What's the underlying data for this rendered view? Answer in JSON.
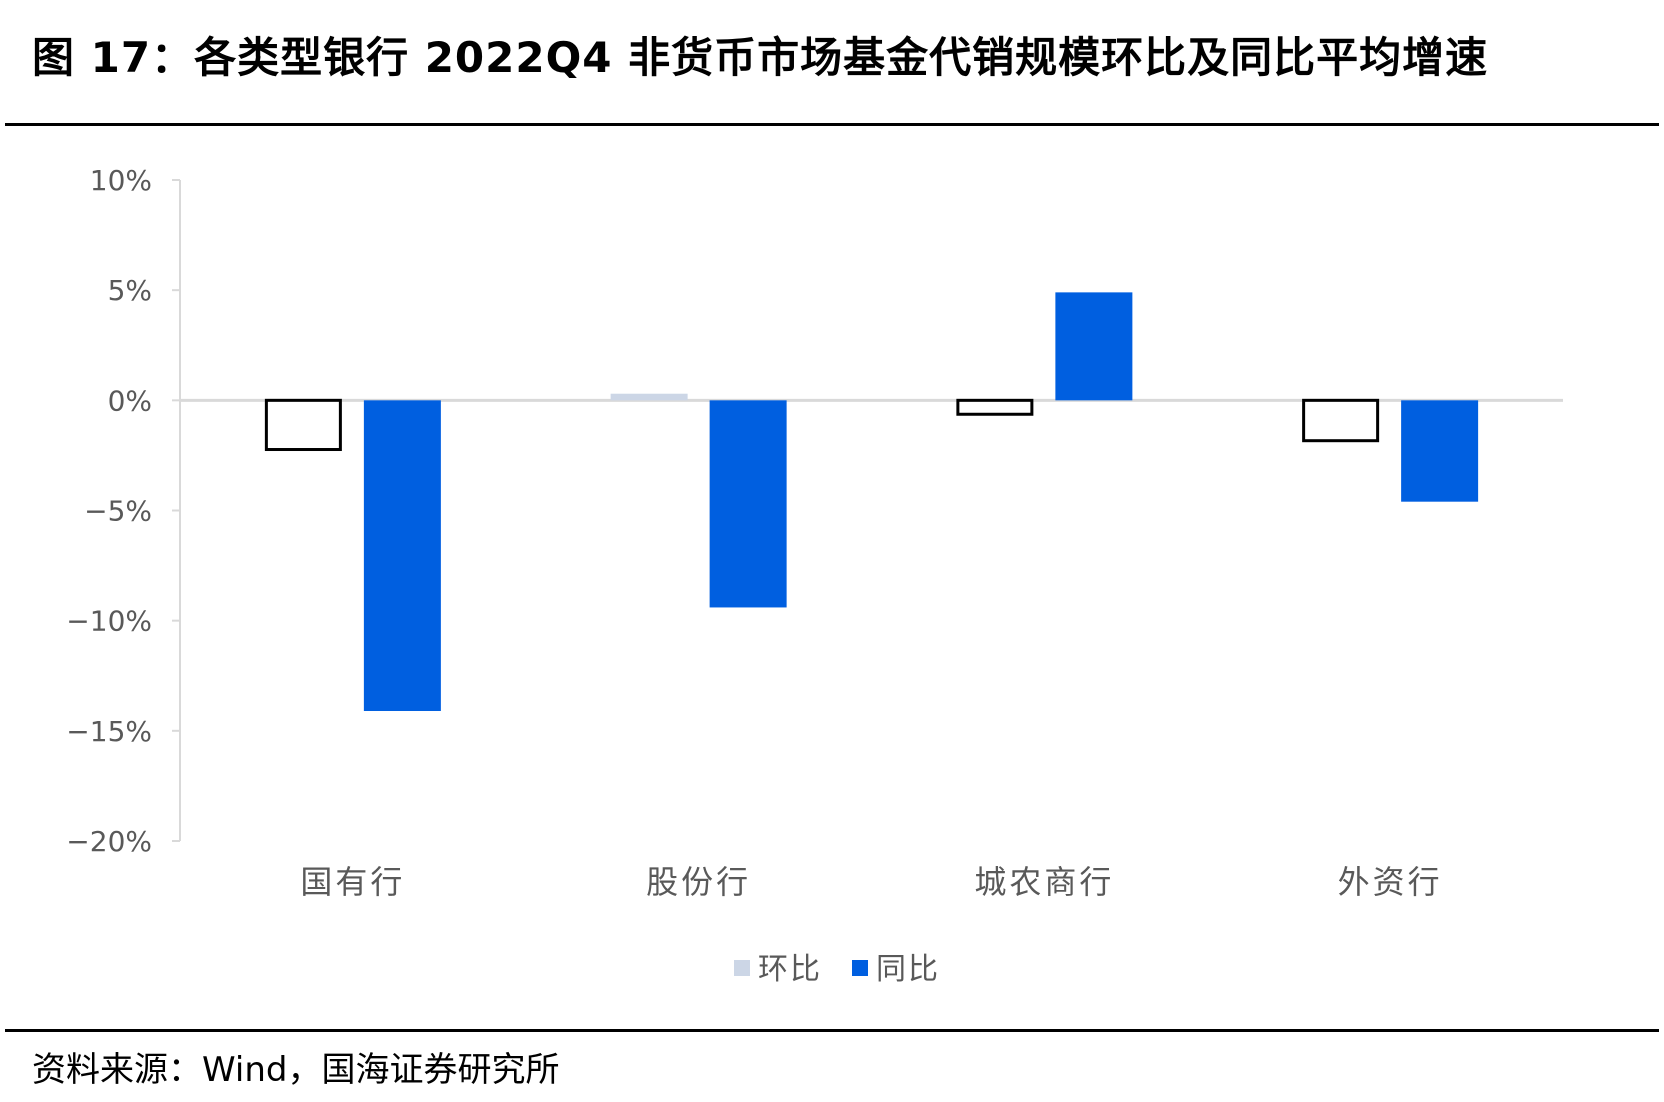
{
  "figure": {
    "title": "图 17：各类型银行 2022Q4 非货币市场基金代销规模环比及同比平均增速",
    "source": "资料来源：Wind，国海证券研究所"
  },
  "colors": {
    "qoq": "#ccd6e6",
    "yoy": "#005fe0",
    "axis": "#d9d9d9",
    "text": "#595959"
  },
  "chart_data": {
    "type": "bar",
    "categories": [
      "国有行",
      "股份行",
      "城农商行",
      "外资行"
    ],
    "series": [
      {
        "name": "环比",
        "values": [
          -2.3,
          0.3,
          -0.7,
          -1.9
        ]
      },
      {
        "name": "同比",
        "values": [
          -14.1,
          -9.4,
          4.9,
          -4.6
        ]
      }
    ],
    "yticks": [
      "10%",
      "5%",
      "0%",
      "−5%",
      "−10%",
      "−15%",
      "−20%"
    ],
    "ytick_values": [
      10,
      5,
      0,
      -5,
      -10,
      -15,
      -20
    ],
    "ylim": [
      -20,
      10
    ],
    "legend_position": "bottom",
    "grid": false
  }
}
